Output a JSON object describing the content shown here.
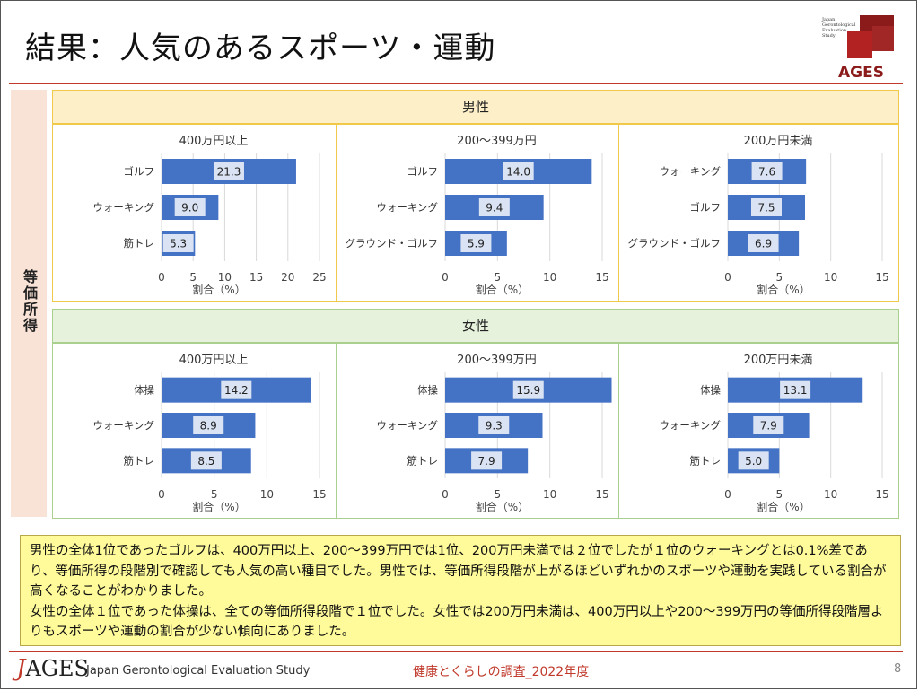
{
  "slide": {
    "title": "結果：人気のあるスポーツ・運動",
    "side_label": "等価所得",
    "summary": [
      "男性の全体1位であったゴルフは、400万円以上、200～399万円では1位、200万円未満では２位でしたが１位のウォーキングとは0.1%差であり、等価所得の段階別で確認しても人気の高い種目でした。男性では、等価所得段階が上がるほどいずれかのスポーツや運動を実践している割合が高くなることがわかりました。",
      "女性の全体１位であった体操は、全ての等価所得段階で１位でした。女性では200万円未満は、400万円以上や200～399万円の等価所得段階層よりもスポーツや運動の割合が少ない傾向にありました。"
    ]
  },
  "logo": {
    "small_text": [
      "Japan",
      "Gerontological",
      "Evaluation",
      "Study"
    ],
    "wordmark": "AGES"
  },
  "groups": {
    "male": "男性",
    "female": "女性"
  },
  "footer": {
    "logo_j": "J",
    "logo_rest": "AGES",
    "org": "Japan Gerontological Evaluation Study",
    "center": "健康とくらしの調査_2022年度",
    "page": "8"
  },
  "colors": {
    "bar": "#4472c4",
    "label_bg": "#dae3f3",
    "male_border": "#f0c94a",
    "female_border": "#a9d08e"
  },
  "chart_data": [
    {
      "type": "bar",
      "orientation": "horizontal",
      "group": "男性",
      "title": "400万円以上",
      "xlabel": "割合（%）",
      "categories": [
        "ゴルフ",
        "ウォーキング",
        "筋トレ"
      ],
      "values": [
        21.3,
        9.0,
        5.3
      ],
      "xlim": [
        0,
        25
      ],
      "xticks": [
        0,
        5,
        10,
        15,
        20,
        25
      ],
      "grid": true
    },
    {
      "type": "bar",
      "orientation": "horizontal",
      "group": "男性",
      "title": "200～399万円",
      "xlabel": "割合（%）",
      "categories": [
        "ゴルフ",
        "ウォーキング",
        "グラウンド・ゴルフ"
      ],
      "values": [
        14.0,
        9.4,
        5.9
      ],
      "xlim": [
        0,
        15
      ],
      "xticks": [
        0,
        5,
        10,
        15
      ],
      "grid": true
    },
    {
      "type": "bar",
      "orientation": "horizontal",
      "group": "男性",
      "title": "200万円未満",
      "xlabel": "割合（%）",
      "categories": [
        "ウォーキング",
        "ゴルフ",
        "グラウンド・ゴルフ"
      ],
      "values": [
        7.6,
        7.5,
        6.9
      ],
      "xlim": [
        0,
        15
      ],
      "xticks": [
        0,
        5,
        10,
        15
      ],
      "grid": true
    },
    {
      "type": "bar",
      "orientation": "horizontal",
      "group": "女性",
      "title": "400万円以上",
      "xlabel": "割合（%）",
      "categories": [
        "体操",
        "ウォーキング",
        "筋トレ"
      ],
      "values": [
        14.2,
        8.9,
        8.5
      ],
      "xlim": [
        0,
        15
      ],
      "xticks": [
        0,
        5,
        10,
        15
      ],
      "grid": true
    },
    {
      "type": "bar",
      "orientation": "horizontal",
      "group": "女性",
      "title": "200～399万円",
      "xlabel": "割合（%）",
      "categories": [
        "体操",
        "ウォーキング",
        "筋トレ"
      ],
      "values": [
        15.9,
        9.3,
        7.9
      ],
      "xlim": [
        0,
        15
      ],
      "xticks": [
        0,
        5,
        10,
        15
      ],
      "grid": true
    },
    {
      "type": "bar",
      "orientation": "horizontal",
      "group": "女性",
      "title": "200万円未満",
      "xlabel": "割合（%）",
      "categories": [
        "体操",
        "ウォーキング",
        "筋トレ"
      ],
      "values": [
        13.1,
        7.9,
        5.0
      ],
      "xlim": [
        0,
        15
      ],
      "xticks": [
        0,
        5,
        10,
        15
      ],
      "grid": true
    }
  ]
}
